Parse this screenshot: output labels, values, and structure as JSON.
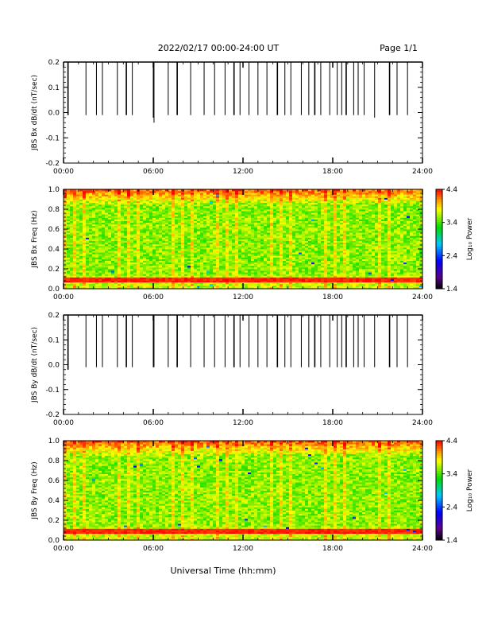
{
  "header": {
    "title": "2022/02/17  00:00-24:00 UT",
    "page": "Page 1/1"
  },
  "footer": {
    "xlabel": "Universal Time (hh:mm)"
  },
  "x_ticks": [
    "00:00",
    "06:00",
    "12:00",
    "18:00",
    "24:00"
  ],
  "spike_times_hours": [
    0.3,
    1.5,
    2.2,
    2.6,
    3.6,
    4.2,
    4.6,
    6.0,
    6.05,
    7.0,
    7.6,
    8.5,
    9.4,
    10.1,
    10.8,
    11.4,
    11.8,
    12.4,
    13.0,
    13.6,
    14.3,
    14.8,
    15.2,
    15.9,
    16.4,
    16.8,
    17.2,
    17.8,
    18.3,
    18.6,
    18.9,
    19.4,
    19.7,
    20.1,
    20.8,
    21.8,
    22.3,
    23.0
  ],
  "chart_data": [
    {
      "type": "line",
      "ylabel": "JBS Bx dB/dt (nT/sec)",
      "x_range_hours": [
        0,
        24
      ],
      "ylim": [
        -0.2,
        0.2
      ],
      "y_ticks": [
        "-0.2",
        "-0.1",
        "0.0",
        "0.1",
        "0.2"
      ],
      "baseline": 0.2,
      "spike_min_values": [
        -0.01,
        -0.01,
        -0.01,
        -0.01,
        -0.01,
        -0.01,
        -0.01,
        -0.02,
        -0.04,
        -0.01,
        -0.01,
        -0.01,
        -0.01,
        -0.01,
        -0.01,
        -0.01,
        -0.01,
        -0.01,
        -0.01,
        -0.01,
        -0.01,
        -0.01,
        -0.01,
        -0.01,
        -0.01,
        -0.01,
        -0.01,
        -0.01,
        -0.01,
        -0.01,
        -0.01,
        -0.01,
        -0.01,
        -0.01,
        -0.02,
        -0.01,
        -0.01,
        -0.01
      ]
    },
    {
      "type": "heatmap",
      "ylabel": "JBS Bx Freq (Hz)",
      "x_range_hours": [
        0,
        24
      ],
      "ylim": [
        0.0,
        1.0
      ],
      "y_ticks": [
        "0.0",
        "0.2",
        "0.4",
        "0.6",
        "0.8",
        "1.0"
      ],
      "colorbar": {
        "label": "Log₁₀ Power",
        "ticks": [
          "1.4",
          "2.4",
          "3.4",
          "4.4"
        ],
        "range": [
          1.4,
          4.4
        ]
      },
      "features": "Power mostly 3.4-3.8 (green) with higher power (yellow/orange/red) near 1.0 Hz and a persistent red band near 0.06-0.09 Hz."
    },
    {
      "type": "line",
      "ylabel": "JBS By dB/dt (nT/sec)",
      "x_range_hours": [
        0,
        24
      ],
      "ylim": [
        -0.2,
        0.2
      ],
      "y_ticks": [
        "-0.2",
        "-0.1",
        "0.0",
        "0.1",
        "0.2"
      ],
      "baseline": 0.2,
      "spike_min_values": [
        -0.02,
        -0.01,
        -0.01,
        -0.01,
        -0.01,
        -0.01,
        -0.01,
        -0.01,
        -0.01,
        -0.01,
        -0.01,
        -0.01,
        -0.01,
        -0.01,
        -0.01,
        -0.01,
        -0.01,
        -0.01,
        -0.01,
        -0.01,
        -0.01,
        -0.01,
        -0.01,
        -0.01,
        -0.01,
        -0.01,
        -0.01,
        -0.01,
        -0.01,
        -0.01,
        -0.01,
        -0.01,
        -0.01,
        -0.01,
        -0.01,
        -0.01,
        -0.01,
        -0.01
      ]
    },
    {
      "type": "heatmap",
      "ylabel": "JBS By Freq (Hz)",
      "x_range_hours": [
        0,
        24
      ],
      "ylim": [
        0.0,
        1.0
      ],
      "y_ticks": [
        "0.0",
        "0.2",
        "0.4",
        "0.6",
        "0.8",
        "1.0"
      ],
      "colorbar": {
        "label": "Log₁₀ Power",
        "ticks": [
          "1.4",
          "2.4",
          "3.4",
          "4.4"
        ],
        "range": [
          1.4,
          4.4
        ]
      },
      "features": "Power mostly 3.4-3.8 (green) with higher power near 1.0 Hz and a persistent red band near 0.06-0.09 Hz."
    }
  ],
  "colors": {
    "axes": "#000000",
    "trace": "#000000",
    "background": "#ffffff"
  }
}
